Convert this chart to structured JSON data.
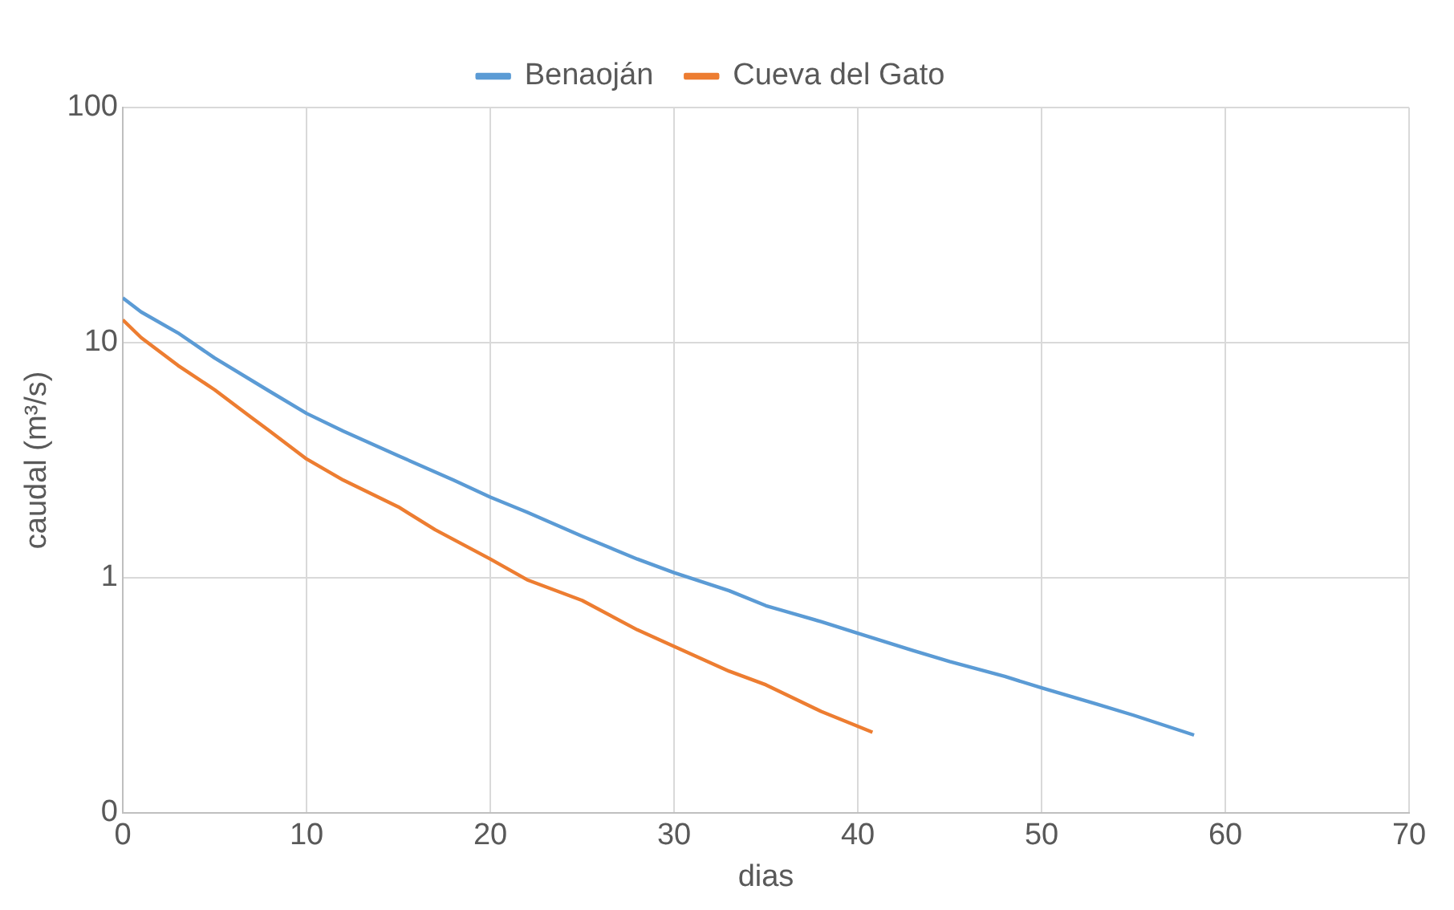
{
  "chart_data": {
    "type": "line",
    "xlabel": "dias",
    "ylabel": "caudal (m³/s)",
    "log": "y",
    "grid": true,
    "legend": "top",
    "marker": "none",
    "line_style": "solid",
    "xlim": [
      0,
      70
    ],
    "xticks": [
      0,
      10,
      20,
      30,
      40,
      50,
      60,
      70
    ],
    "ylim": [
      0.1,
      100
    ],
    "yticks": [
      {
        "value": 0.1,
        "label": "0"
      },
      1,
      10,
      100
    ],
    "series": [
      {
        "name": "Benaoján",
        "color": "#5b9bd5",
        "x": [
          0,
          1,
          3,
          5,
          8,
          10,
          12,
          15,
          18,
          20,
          22,
          25,
          28,
          30,
          33,
          35,
          38,
          40,
          43,
          45,
          48,
          50,
          53,
          55,
          58.3
        ],
        "values": [
          15.5,
          13.5,
          11,
          8.6,
          6.2,
          5.0,
          4.2,
          3.3,
          2.6,
          2.2,
          1.9,
          1.5,
          1.2,
          1.05,
          0.88,
          0.76,
          0.65,
          0.58,
          0.49,
          0.44,
          0.38,
          0.34,
          0.29,
          0.26,
          0.214
        ]
      },
      {
        "name": "Cueva del Gato",
        "color": "#ed7d31",
        "x": [
          0,
          1,
          3,
          5,
          7,
          8,
          10,
          12,
          15,
          17,
          20,
          22,
          25,
          28,
          30,
          33,
          35,
          38,
          40.8
        ],
        "values": [
          12.5,
          10.5,
          8.0,
          6.3,
          4.8,
          4.2,
          3.2,
          2.6,
          2.0,
          1.6,
          1.2,
          0.98,
          0.8,
          0.6,
          0.51,
          0.4,
          0.35,
          0.27,
          0.22
        ]
      }
    ]
  }
}
